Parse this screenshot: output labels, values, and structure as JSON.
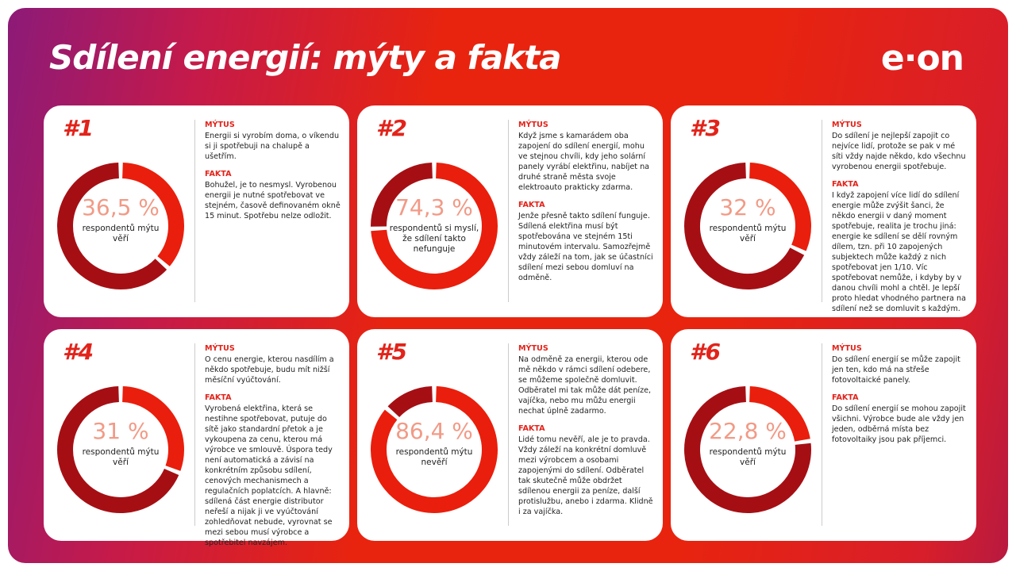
{
  "header": {
    "title": "Sdílení energií: mýty a fakta",
    "logo": "e·on"
  },
  "cards": [
    {
      "label": "#1",
      "value": 36.5,
      "value_label": "36,5 %",
      "caption": "respondentů mýtu věří",
      "myth_heading": "MÝTUS",
      "myth": "Energii si vyrobím doma, o víkendu si ji spotřebuji na chalupě a ušetřím.",
      "fact_heading": "FAKTA",
      "fact": "Bohužel, je to nesmysl. Vyrobenou energii je nutné spotřebovat ve stejném, časově definovaném okně 15 minut. Spotřebu nelze odložit."
    },
    {
      "label": "#2",
      "value": 74.3,
      "value_label": "74,3 %",
      "caption": "respondentů si myslí, že sdílení takto nefunguje",
      "myth_heading": "MÝTUS",
      "myth": "Když jsme s kamarádem oba zapojení do sdílení energií, mohu ve stejnou chvíli, kdy jeho solární panely vyrábí elektřinu, nabíjet na druhé straně města svoje elektroauto prakticky zdarma.",
      "fact_heading": "FAKTA",
      "fact": "Jenže přesně takto sdílení funguje. Sdílená elektřina musí být spotřebována ve stejném 15ti minutovém intervalu. Samozřejmě vždy záleží na tom, jak se účastníci sdílení mezi sebou domluví na odměně."
    },
    {
      "label": "#3",
      "value": 32,
      "value_label": "32 %",
      "caption": "respondentů mýtu věří",
      "myth_heading": "MÝTUS",
      "myth": "Do sdílení je nejlepší zapojit co nejvíce lidí, protože se pak v mé síti vždy najde někdo, kdo všechnu vyrobenou energii spotřebuje.",
      "fact_heading": "FAKTA",
      "fact": "I když zapojení více lidí do sdílení energie může zvýšit šanci, že někdo energii v daný moment spotřebuje, realita je trochu jiná: energie ke sdílení se dělí rovným dílem, tzn. při 10 zapojených subjektech může každý z nich spotřebovat jen 1/10. Víc spotřebovat nemůže, i kdyby by v danou chvíli mohl a chtěl. Je lepší proto hledat vhodného partnera na sdílení než se domluvit s každým."
    },
    {
      "label": "#4",
      "value": 31,
      "value_label": "31 %",
      "caption": "respondentů mýtu věří",
      "myth_heading": "MÝTUS",
      "myth": "O cenu energie, kterou nasdílím a někdo spotřebuje, budu mít nižší měsíční vyúčtování.",
      "fact_heading": "FAKTA",
      "fact": "Vyrobená elektřina, která se nestihne spotřebovat, putuje do sítě jako standardní přetok a je vykoupena za cenu, kterou má výrobce ve smlouvě. Úspora tedy není automatická a závisí na konkrétním způsobu sdílení, cenových mechanismech a regulačních poplatcích. A hlavně: sdílená část energie distributor neřeší a nijak ji ve vyúčtování zohledňovat nebude, vyrovnat se mezi sebou musí výrobce a spotřebitel navzájem."
    },
    {
      "label": "#5",
      "value": 86.4,
      "value_label": "86,4 %",
      "caption": "respondentů mýtu nevěří",
      "myth_heading": "MÝTUS",
      "myth": "Na odměně za energii, kterou ode mě někdo v rámci sdílení odebere, se můžeme společně domluvit. Odběratel mi tak může dát peníze, vajíčka, nebo mu můžu energii nechat úplně zadarmo.",
      "fact_heading": "FAKTA",
      "fact": "Lidé tomu nevěří, ale je to pravda. Vždy záleží na konkrétní domluvě mezi výrobcem a osobami zapojenými do sdílení. Odběratel tak skutečně může obdržet sdílenou energii za peníze, další protislužbu, anebo i zdarma. Klidně i za vajíčka."
    },
    {
      "label": "#6",
      "value": 22.8,
      "value_label": "22,8 %",
      "caption": "respondentů mýtu věří",
      "myth_heading": "MÝTUS",
      "myth": "Do sdílení energií se může zapojit jen ten, kdo má na střeše fotovoltaické panely.",
      "fact_heading": "FAKTA",
      "fact": "Do sdílení energií se mohou zapojit všichni. Výrobce bude ale vždy jen jeden, odběrná místa bez fotovoltaiky jsou pak příjemci."
    }
  ]
}
